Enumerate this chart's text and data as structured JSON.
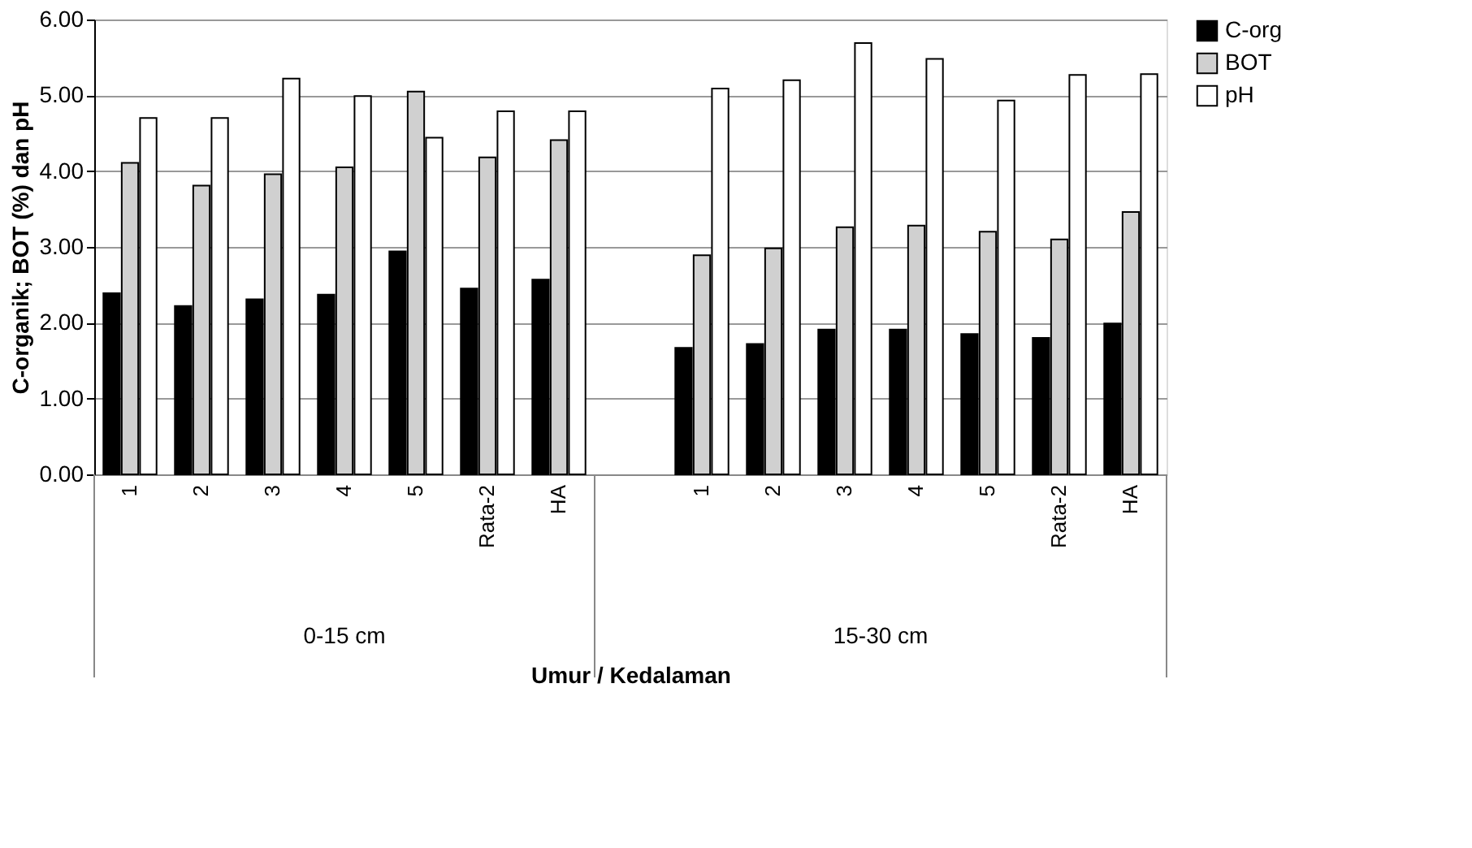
{
  "chart_data": {
    "type": "bar",
    "ylabel": "C-organik; BOT (%) dan pH",
    "xlabel": "Umur / Kedalaman",
    "categories": [
      "1",
      "2",
      "3",
      "4",
      "5",
      "Rata-2",
      "HA",
      null,
      "1",
      "2",
      "3",
      "4",
      "5",
      "Rata-2",
      "HA"
    ],
    "series": [
      {
        "name": "C-org",
        "color": "#000000",
        "values": [
          2.39,
          2.22,
          2.31,
          2.37,
          2.94,
          2.45,
          2.57,
          null,
          1.67,
          1.72,
          1.91,
          1.91,
          1.85,
          1.8,
          1.99
        ]
      },
      {
        "name": "BOT",
        "color": "#d0d0d0",
        "values": [
          4.11,
          3.81,
          3.96,
          4.05,
          5.05,
          4.18,
          4.41,
          null,
          2.89,
          2.98,
          3.26,
          3.28,
          3.2,
          3.1,
          3.46
        ]
      },
      {
        "name": "pH",
        "color": "#ffffff",
        "values": [
          4.7,
          4.7,
          5.22,
          4.99,
          4.44,
          4.79,
          4.79,
          null,
          5.09,
          5.2,
          5.69,
          5.48,
          4.93,
          5.27,
          5.28
        ]
      }
    ],
    "ylim": [
      0,
      6
    ],
    "yticks": [
      {
        "value": 0,
        "label": "0.00"
      },
      {
        "value": 1,
        "label": "1.00"
      },
      {
        "value": 2,
        "label": "2.00"
      },
      {
        "value": 3,
        "label": "3.00"
      },
      {
        "value": 4,
        "label": "4.00"
      },
      {
        "value": 5,
        "label": "5.00"
      },
      {
        "value": 6,
        "label": "6.00"
      }
    ],
    "grid": "y",
    "legend": "right",
    "annotations": [
      "0-15 cm",
      "15-30 cm"
    ]
  }
}
